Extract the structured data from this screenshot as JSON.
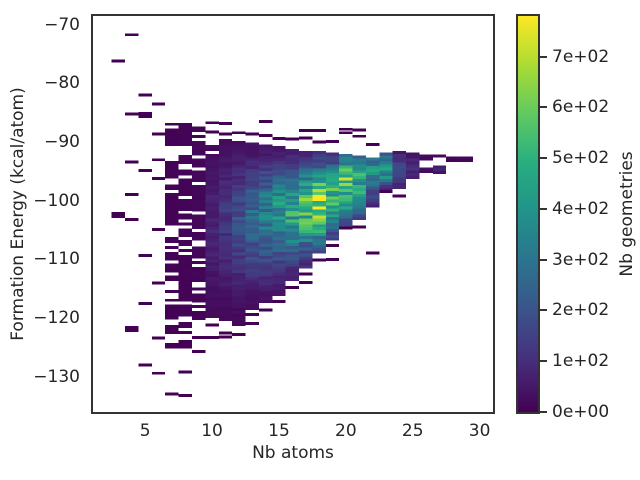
{
  "figure": {
    "background": "#ffffff",
    "text_color": "#262626",
    "spine_color": "#333333"
  },
  "chart_data": {
    "type": "heatmap",
    "subtype": "2d-histogram",
    "title": "",
    "xlabel": "Nb atoms",
    "ylabel": "Formation Energy (kcal/atom)",
    "colorbar_label": "Nb geometries",
    "xlim": [
      1.1,
      31.0
    ],
    "ylim": [
      -136.0,
      -68.5
    ],
    "vmin": 0,
    "vmax": 780,
    "grid": false,
    "bin": {
      "width": 1.0,
      "height": 0.5
    },
    "x_ticks": [
      {
        "v": 5,
        "label": "5"
      },
      {
        "v": 10,
        "label": "10"
      },
      {
        "v": 15,
        "label": "15"
      },
      {
        "v": 20,
        "label": "20"
      },
      {
        "v": 25,
        "label": "25"
      },
      {
        "v": 30,
        "label": "30"
      }
    ],
    "y_ticks": [
      {
        "v": -70,
        "label": "−70"
      },
      {
        "v": -80,
        "label": "−80"
      },
      {
        "v": -90,
        "label": "−90"
      },
      {
        "v": -100,
        "label": "−100"
      },
      {
        "v": -110,
        "label": "−110"
      },
      {
        "v": -120,
        "label": "−120"
      },
      {
        "v": -130,
        "label": "−130"
      }
    ],
    "colorbar_ticks": [
      {
        "v": 0,
        "label": "0e+00"
      },
      {
        "v": 100,
        "label": "1e+02"
      },
      {
        "v": 200,
        "label": "2e+02"
      },
      {
        "v": 300,
        "label": "3e+02"
      },
      {
        "v": 400,
        "label": "4e+02"
      },
      {
        "v": 500,
        "label": "5e+02"
      },
      {
        "v": 600,
        "label": "6e+02"
      },
      {
        "v": 700,
        "label": "7e+02"
      }
    ],
    "colormap": {
      "name": "viridis",
      "stops": [
        "#440154",
        "#472d7b",
        "#3b528b",
        "#2c728e",
        "#21918c",
        "#27ad81",
        "#5ec962",
        "#aadc32",
        "#fde725"
      ]
    },
    "columns": [
      {
        "x": 3,
        "pts": [
          [
            -76.2,
            1
          ],
          [
            -102.2,
            2
          ],
          [
            -102.7,
            1
          ]
        ]
      },
      {
        "x": 4,
        "pts": [
          [
            -71.7,
            1
          ],
          [
            -85.2,
            2
          ],
          [
            -93.4,
            1
          ],
          [
            -98.9,
            1
          ],
          [
            -103.2,
            1
          ],
          [
            -121.6,
            2
          ],
          [
            -122.1,
            2
          ]
        ]
      },
      {
        "x": 5,
        "pts": [
          [
            -82.0,
            1
          ],
          [
            -85.1,
            2
          ],
          [
            -85.6,
            1
          ],
          [
            -94.8,
            1
          ],
          [
            -109.3,
            1
          ],
          [
            -117.5,
            1
          ],
          [
            -128.0,
            1
          ]
        ]
      },
      {
        "x": 6,
        "pts": [
          [
            -83.5,
            1
          ],
          [
            -88.6,
            1
          ],
          [
            -93.0,
            1
          ],
          [
            -96.2,
            1
          ],
          [
            -104.9,
            1
          ],
          [
            -114.0,
            1
          ],
          [
            -123.4,
            1
          ],
          [
            -129.4,
            1
          ]
        ]
      },
      {
        "x": 7,
        "band": {
          "top": -86.7,
          "bottom": -124.5,
          "peak": -100.0,
          "amp": 5,
          "sigU": 20,
          "sigL": 20
        },
        "pts": [
          [
            -132.9,
            2
          ]
        ]
      },
      {
        "x": 8,
        "band": {
          "top": -86.7,
          "bottom": -125.7,
          "peak": -100.0,
          "amp": 9,
          "sigU": 20,
          "sigL": 20
        },
        "pts": [
          [
            -129.2,
            1
          ],
          [
            -133.2,
            1
          ]
        ]
      },
      {
        "x": 9,
        "band": {
          "top": -87.3,
          "bottom": -120.0,
          "peak": -101.0,
          "amp": 15,
          "sigU": 18,
          "sigL": 16
        },
        "pts": [
          [
            -123.3,
            1
          ],
          [
            -125.7,
            1
          ]
        ]
      },
      {
        "x": 10,
        "band": {
          "top": -90.5,
          "bottom": -119.6,
          "peak": -103.5,
          "amp": 90,
          "sigU": 7.5,
          "sigL": 9
        },
        "pts": [
          [
            -86.7,
            1
          ],
          [
            -88.3,
            1
          ],
          [
            -121.2,
            1
          ],
          [
            -123.3,
            1
          ]
        ]
      },
      {
        "x": 11,
        "band": {
          "top": -89.5,
          "bottom": -120.5,
          "peak": -103.0,
          "amp": 140,
          "sigU": 7,
          "sigL": 8.5
        },
        "pts": [
          [
            -86.8,
            1
          ],
          [
            -88.6,
            1
          ],
          [
            -122.5,
            1
          ],
          [
            -123.2,
            1
          ]
        ]
      },
      {
        "x": 12,
        "band": {
          "top": -89.8,
          "bottom": -121.3,
          "peak": -102.8,
          "amp": 210,
          "sigU": 6.5,
          "sigL": 8
        },
        "pts": [
          [
            -88.4,
            1
          ],
          [
            -122.8,
            1
          ]
        ]
      },
      {
        "x": 13,
        "band": {
          "top": -90.1,
          "bottom": -117.9,
          "peak": -102.5,
          "amp": 290,
          "sigU": 6,
          "sigL": 7.5
        },
        "pts": [
          [
            -88.6,
            1
          ],
          [
            -119.4,
            1
          ],
          [
            -120.9,
            1
          ]
        ]
      },
      {
        "x": 14,
        "band": {
          "top": -90.4,
          "bottom": -117.0,
          "peak": -102.2,
          "amp": 370,
          "sigU": 5.6,
          "sigL": 7
        },
        "pts": [
          [
            -86.5,
            1
          ],
          [
            -88.9,
            1
          ],
          [
            -118.6,
            1
          ]
        ]
      },
      {
        "x": 15,
        "band": {
          "top": -90.7,
          "bottom": -115.7,
          "peak": -101.8,
          "amp": 440,
          "sigU": 5.2,
          "sigL": 6.5
        },
        "pts": [
          [
            -89.4,
            1
          ],
          [
            -117.2,
            1
          ]
        ]
      },
      {
        "x": 16,
        "band": {
          "top": -91.2,
          "bottom": -113.4,
          "peak": -101.5,
          "amp": 520,
          "sigU": 4.8,
          "sigL": 6
        },
        "pts": [
          [
            -89.5,
            1
          ],
          [
            -114.8,
            1
          ]
        ]
      },
      {
        "x": 17,
        "band": {
          "top": -91.5,
          "bottom": -110.9,
          "peak": -100.8,
          "amp": 640,
          "sigU": 4.5,
          "sigL": 5.4
        },
        "pts": [
          [
            -88.0,
            1
          ],
          [
            -89.3,
            1
          ],
          [
            -112.5,
            1
          ],
          [
            -113.9,
            1
          ]
        ]
      },
      {
        "x": 18,
        "band": {
          "top": -91.5,
          "bottom": -108.3,
          "peak": -100.2,
          "amp": 780,
          "sigU": 4.2,
          "sigL": 5
        },
        "pts": [
          [
            -88.0,
            1
          ],
          [
            -90.0,
            1
          ],
          [
            -110.1,
            1
          ]
        ]
      },
      {
        "x": 19,
        "band": {
          "top": -91.8,
          "bottom": -106.1,
          "peak": -99.2,
          "amp": 600,
          "sigU": 4,
          "sigL": 4.6
        },
        "pts": [
          [
            -89.9,
            1
          ],
          [
            -107.6,
            1
          ],
          [
            -110.0,
            1
          ]
        ]
      },
      {
        "x": 20,
        "band": {
          "top": -92.0,
          "bottom": -104.1,
          "peak": -97.2,
          "amp": 660,
          "sigU": 3.8,
          "sigL": 4.3
        },
        "pts": [
          [
            -87.8,
            1
          ],
          [
            -88.4,
            1
          ],
          [
            -104.6,
            1
          ]
        ]
      },
      {
        "x": 21,
        "band": {
          "top": -92.3,
          "bottom": -102.7,
          "peak": -96.8,
          "amp": 540,
          "sigU": 3.5,
          "sigL": 4
        },
        "pts": [
          [
            -87.9,
            1
          ],
          [
            -89.0,
            1
          ],
          [
            -104.5,
            1
          ]
        ]
      },
      {
        "x": 22,
        "band": {
          "top": -92.6,
          "bottom": -100.4,
          "peak": -94.6,
          "amp": 420,
          "sigU": 2.6,
          "sigL": 3.6
        },
        "pts": [
          [
            -90.4,
            1
          ],
          [
            -108.9,
            1
          ]
        ]
      },
      {
        "x": 23,
        "band": {
          "top": -91.8,
          "bottom": -97.8,
          "peak": -94.4,
          "amp": 500,
          "sigU": 2.0,
          "sigL": 2.2
        },
        "pts": [
          [
            -98.4,
            1
          ]
        ]
      },
      {
        "x": 24,
        "band": {
          "top": -91.5,
          "bottom": -97.5,
          "peak": -94.8,
          "amp": 180,
          "sigU": 2.2,
          "sigL": 2.4
        },
        "pts": [
          [
            -99.2,
            1
          ]
        ]
      },
      {
        "x": 25,
        "band": {
          "top": -91.8,
          "bottom": -95.9,
          "peak": -94.4,
          "amp": 110,
          "sigU": 1.8,
          "sigL": 1.6
        },
        "pts": []
      },
      {
        "x": 26,
        "pts": [
          [
            -92.4,
            20
          ],
          [
            -92.9,
            14
          ],
          [
            -94.6,
            35
          ],
          [
            -95.0,
            25
          ]
        ]
      },
      {
        "x": 27,
        "pts": [
          [
            -92.4,
            18
          ],
          [
            -94.2,
            60
          ],
          [
            -94.7,
            80
          ],
          [
            -95.2,
            40
          ]
        ]
      },
      {
        "x": 28,
        "pts": [
          [
            -92.7,
            12
          ],
          [
            -93.1,
            8
          ]
        ]
      },
      {
        "x": 29,
        "pts": [
          [
            -92.7,
            15
          ],
          [
            -93.1,
            10
          ]
        ]
      }
    ]
  }
}
